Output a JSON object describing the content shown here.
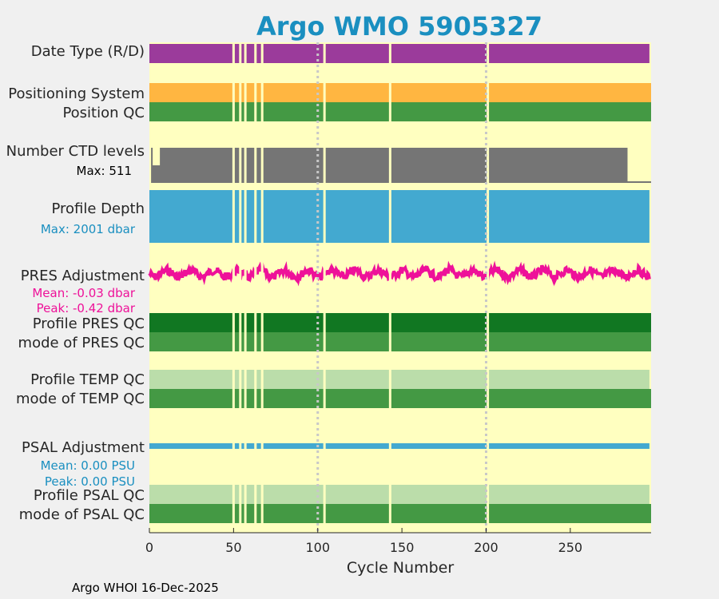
{
  "chart_data": {
    "type": "bar",
    "title": "Argo WMO 5905327",
    "xlabel": "Cycle Number",
    "xlim": [
      0,
      298
    ],
    "x_ticks": [
      0,
      50,
      100,
      150,
      200,
      250
    ],
    "dotted_vlines": [
      100,
      200
    ],
    "gap_cycles": [
      50,
      54,
      57,
      63,
      67,
      104,
      143,
      201
    ],
    "footer": "Argo WHOI 16-Dec-2025",
    "rows": [
      {
        "key": "date_type",
        "label": "Date Type (R/D)",
        "color": "#9b3b9b"
      },
      {
        "key": "positioning",
        "label": "Positioning System",
        "color": "#ffb641"
      },
      {
        "key": "position_qc",
        "label": "Position QC",
        "color": "#449944"
      },
      {
        "key": "ctd_levels",
        "label": "Number CTD levels",
        "sublabel": "Max: 511",
        "max": 511,
        "color": "#757575"
      },
      {
        "key": "profile_depth",
        "label": "Profile Depth",
        "sublabel": "Max: 2001 dbar",
        "max": 2001,
        "color": "#43a9d0"
      },
      {
        "key": "pres_adjustment",
        "label": "PRES Adjustment",
        "sublabel": "Mean: -0.03 dbar",
        "sublabel2": "Peak: -0.42 dbar",
        "mean": -0.03,
        "peak": -0.42,
        "color": "#ee1199"
      },
      {
        "key": "profile_pres_qc",
        "label": "Profile PRES QC",
        "color": "#117722"
      },
      {
        "key": "mode_pres_qc",
        "label": "mode of PRES QC",
        "color": "#449944"
      },
      {
        "key": "profile_temp_qc",
        "label": "Profile TEMP QC",
        "color": "#bbddaa"
      },
      {
        "key": "mode_temp_qc",
        "label": "mode of TEMP QC",
        "color": "#449944"
      },
      {
        "key": "psal_adjustment",
        "label": "PSAL Adjustment",
        "sublabel": "Mean: 0.00 PSU",
        "sublabel2": "Peak: 0.00 PSU",
        "mean": 0.0,
        "peak": 0.0,
        "color": "#43a9d0"
      },
      {
        "key": "profile_psal_qc",
        "label": "Profile PSAL QC",
        "color": "#bbddaa"
      },
      {
        "key": "mode_psal_qc",
        "label": "mode of PSAL QC",
        "color": "#449944"
      }
    ],
    "colors": {
      "title": "#1a8fc0",
      "plot_bg": "#ffffc0",
      "gap": "#ffffc0",
      "sublabel_depth": "#1a8fc0",
      "sublabel_pres": "#ee1199",
      "sublabel_psal": "#1a8fc0"
    }
  }
}
